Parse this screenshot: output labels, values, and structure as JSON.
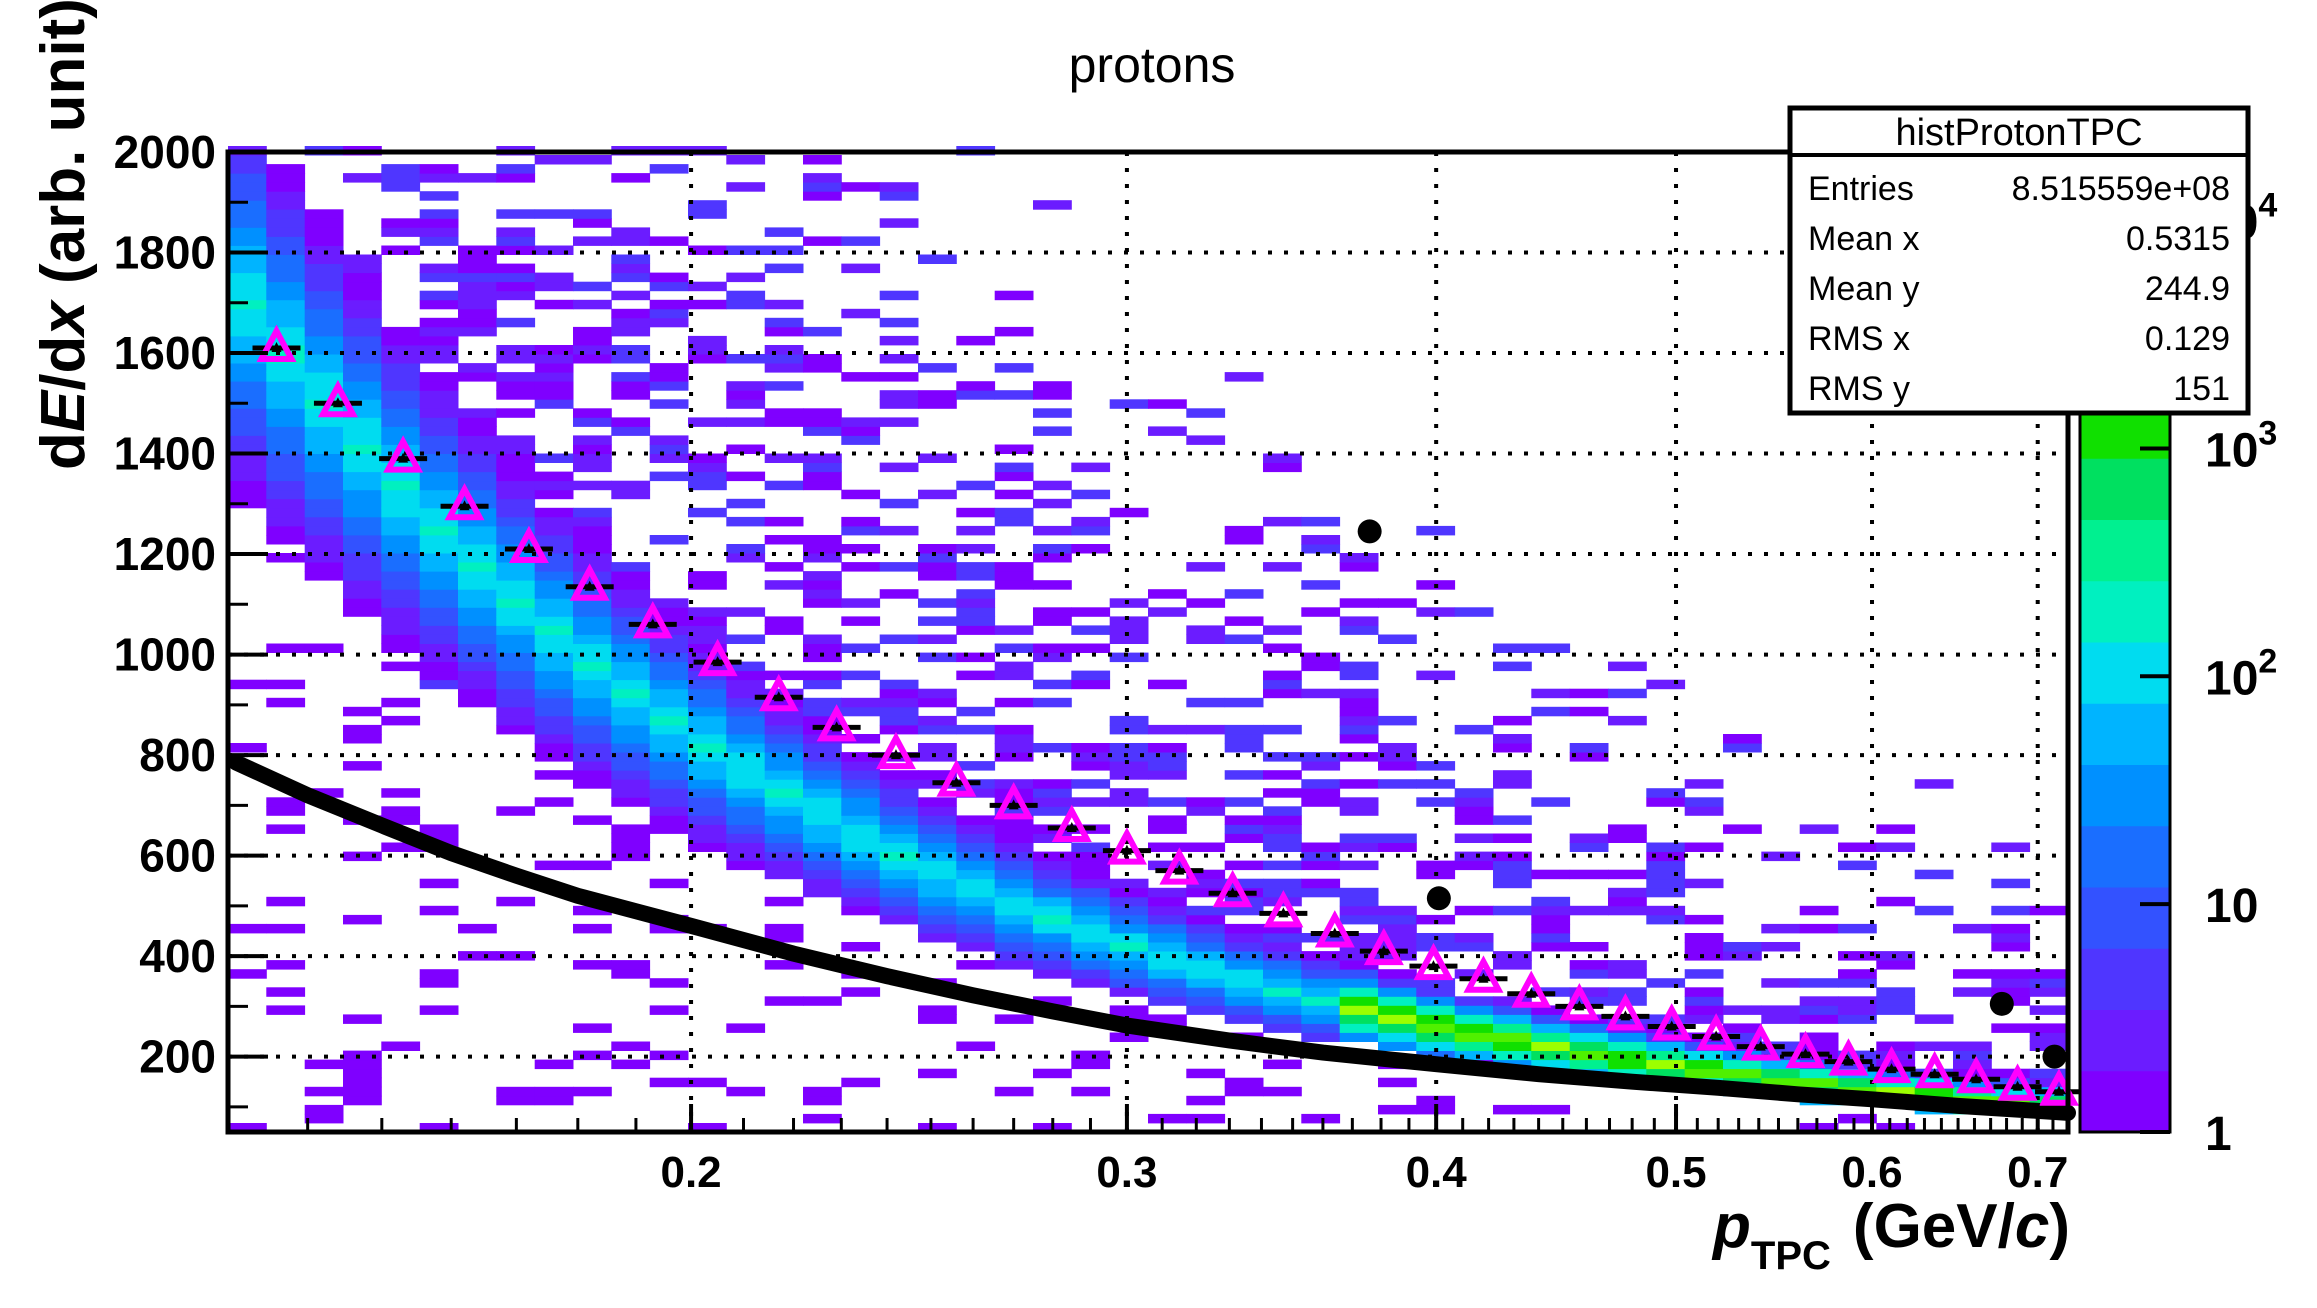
{
  "chart_data": {
    "type": "heatmap",
    "title": "protons",
    "xlabel": {
      "main": "p",
      "sub": "TPC",
      "units_pre": "(GeV/",
      "units_it": "c",
      "units_post": ")"
    },
    "ylabel": {
      "pre": "d",
      "it1": "E",
      "mid": "/d",
      "it2": "x",
      "post": " (arb. unit)"
    },
    "x_scale": "log",
    "xlim": [
      0.13,
      0.72
    ],
    "ylim": [
      50,
      2000
    ],
    "x_ticks": [
      "0.2",
      "0.3",
      "0.4",
      "0.5",
      "0.6",
      "0.7"
    ],
    "y_ticks": [
      "200",
      "400",
      "600",
      "800",
      "1000",
      "1200",
      "1400",
      "1600",
      "1800",
      "2000"
    ],
    "grid": true,
    "colorbar": {
      "scale": "log",
      "range": [
        1,
        20000
      ],
      "tick_labels": [
        {
          "base": "1",
          "exp": ""
        },
        {
          "base": "10",
          "exp": ""
        },
        {
          "base": "10",
          "exp": "2"
        },
        {
          "base": "10",
          "exp": "3"
        },
        {
          "base": "10",
          "exp": "4"
        }
      ]
    },
    "stats_box": {
      "name": "histProtonTPC",
      "rows": [
        {
          "label": "Entries",
          "value": "8.515559e+08"
        },
        {
          "label": "Mean x",
          "value": "0.5315"
        },
        {
          "label": "Mean y",
          "value": "244.9"
        },
        {
          "label": "RMS x",
          "value": "0.129"
        },
        {
          "label": "RMS y",
          "value": "151"
        }
      ]
    },
    "series": [
      {
        "name": "",
        "kind": "triangle-markers",
        "color": "#ff00ff",
        "points": [
          [
            0.136,
            1610
          ],
          [
            0.144,
            1500
          ],
          [
            0.153,
            1390
          ],
          [
            0.162,
            1295
          ],
          [
            0.172,
            1210
          ],
          [
            0.182,
            1135
          ],
          [
            0.193,
            1060
          ],
          [
            0.205,
            985
          ],
          [
            0.217,
            915
          ],
          [
            0.229,
            855
          ],
          [
            0.242,
            800
          ],
          [
            0.256,
            745
          ],
          [
            0.27,
            700
          ],
          [
            0.285,
            655
          ],
          [
            0.3,
            610
          ],
          [
            0.315,
            570
          ],
          [
            0.331,
            525
          ],
          [
            0.347,
            485
          ],
          [
            0.364,
            445
          ],
          [
            0.381,
            410
          ],
          [
            0.399,
            380
          ],
          [
            0.418,
            355
          ],
          [
            0.437,
            325
          ],
          [
            0.457,
            300
          ],
          [
            0.477,
            280
          ],
          [
            0.498,
            260
          ],
          [
            0.519,
            240
          ],
          [
            0.541,
            220
          ],
          [
            0.564,
            205
          ],
          [
            0.587,
            190
          ],
          [
            0.611,
            175
          ],
          [
            0.636,
            165
          ],
          [
            0.661,
            155
          ],
          [
            0.687,
            140
          ],
          [
            0.714,
            130
          ]
        ]
      },
      {
        "name": "",
        "kind": "black-dots",
        "color": "#000000",
        "points": [
          [
            0.376,
            1245
          ],
          [
            0.401,
            515
          ],
          [
            0.677,
            305
          ],
          [
            0.711,
            200
          ]
        ]
      },
      {
        "name": "",
        "kind": "black-curve",
        "color": "#000000",
        "points": [
          [
            0.131,
            785
          ],
          [
            0.14,
            720
          ],
          [
            0.15,
            660
          ],
          [
            0.16,
            605
          ],
          [
            0.17,
            560
          ],
          [
            0.18,
            520
          ],
          [
            0.2,
            460
          ],
          [
            0.22,
            405
          ],
          [
            0.24,
            360
          ],
          [
            0.26,
            322
          ],
          [
            0.28,
            290
          ],
          [
            0.3,
            262
          ],
          [
            0.33,
            232
          ],
          [
            0.36,
            208
          ],
          [
            0.4,
            185
          ],
          [
            0.44,
            165
          ],
          [
            0.48,
            150
          ],
          [
            0.52,
            138
          ],
          [
            0.56,
            125
          ],
          [
            0.6,
            115
          ],
          [
            0.65,
            102
          ],
          [
            0.7,
            92
          ],
          [
            0.72,
            88
          ]
        ]
      }
    ],
    "palette": [
      "#7f00ff",
      "#6b1cff",
      "#4f36ff",
      "#3352ff",
      "#1a6eff",
      "#0090ff",
      "#00b4ff",
      "#00dcf0",
      "#00f0c0",
      "#00f090",
      "#00e060",
      "#10e000",
      "#50f000",
      "#9cff00",
      "#e0ff00",
      "#ffff40"
    ]
  }
}
